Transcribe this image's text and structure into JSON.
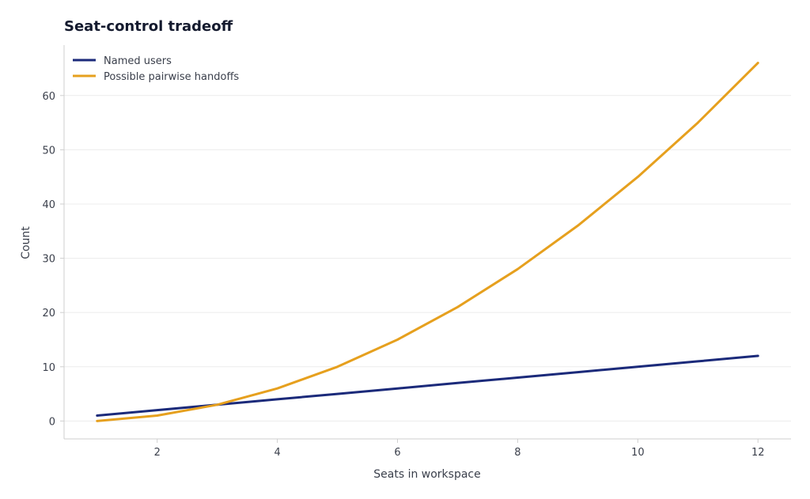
{
  "chart_data": {
    "type": "line",
    "title": "Seat-control tradeoff",
    "xlabel": "Seats in workspace",
    "ylabel": "Count",
    "x": [
      1,
      2,
      3,
      4,
      5,
      6,
      7,
      8,
      9,
      10,
      11,
      12
    ],
    "x_ticks": [
      2,
      4,
      6,
      8,
      10,
      12
    ],
    "y_ticks": [
      0,
      10,
      20,
      30,
      40,
      50,
      60
    ],
    "xlim": [
      0.45,
      12.55
    ],
    "ylim": [
      -3.3,
      69.3
    ],
    "grid": "horizontal",
    "legend_position": "top-left",
    "series": [
      {
        "name": "Named users",
        "color": "#1b2a7a",
        "values": [
          1,
          2,
          3,
          4,
          5,
          6,
          7,
          8,
          9,
          10,
          11,
          12
        ]
      },
      {
        "name": "Possible pairwise handoffs",
        "color": "#e6a01e",
        "values": [
          0,
          1,
          3,
          6,
          10,
          15,
          21,
          28,
          36,
          45,
          55,
          66
        ]
      }
    ]
  }
}
